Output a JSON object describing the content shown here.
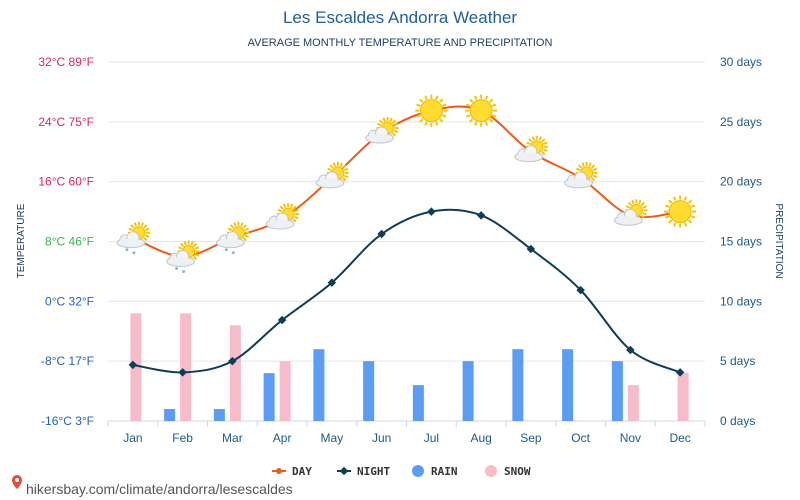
{
  "chart_data": {
    "type": "line",
    "title": "Les Escaldes Andorra Weather",
    "subtitle": "AVERAGE MONTHLY TEMPERATURE AND PRECIPITATION",
    "categories": [
      "Jan",
      "Feb",
      "Mar",
      "Apr",
      "May",
      "Jun",
      "Jul",
      "Aug",
      "Sep",
      "Oct",
      "Nov",
      "Dec"
    ],
    "y_left": {
      "title": "TEMPERATURE",
      "range_c": [
        -16,
        32
      ],
      "ticks": [
        {
          "value": 32,
          "label": "32°C 89°F",
          "color": "#e0245e"
        },
        {
          "value": 24,
          "label": "24°C 75°F",
          "color": "#e0245e"
        },
        {
          "value": 16,
          "label": "16°C 60°F",
          "color": "#e0245e"
        },
        {
          "value": 8,
          "label": "8°C 46°F",
          "color": "#3cb44b"
        },
        {
          "value": 0,
          "label": "0°C 32°F",
          "color": "#1f5fc4"
        },
        {
          "value": -8,
          "label": "-8°C 17°F",
          "color": "#1f5fc4"
        },
        {
          "value": -16,
          "label": "-16°C 3°F",
          "color": "#1f5fc4"
        }
      ]
    },
    "y_right": {
      "title": "PRECIPITATION",
      "range_days": [
        0,
        30
      ],
      "ticks": [
        {
          "value": 30,
          "label": "30 days"
        },
        {
          "value": 25,
          "label": "25 days"
        },
        {
          "value": 20,
          "label": "20 days"
        },
        {
          "value": 15,
          "label": "15 days"
        },
        {
          "value": 10,
          "label": "10 days"
        },
        {
          "value": 5,
          "label": "5 days"
        },
        {
          "value": 0,
          "label": "0 days"
        }
      ]
    },
    "series": [
      {
        "name": "DAY",
        "kind": "line",
        "color": "#f05a1a",
        "values": [
          8.5,
          6,
          8.5,
          11,
          16.5,
          22.5,
          25.5,
          25.5,
          20,
          16.5,
          11.5,
          12
        ],
        "icons": [
          "partly-cloudy-snow",
          "partly-cloudy-snow",
          "partly-cloudy-snow",
          "partly-cloudy",
          "partly-cloudy",
          "partly-cloudy",
          "sun",
          "sun",
          "partly-cloudy",
          "partly-cloudy",
          "partly-cloudy",
          "sun"
        ]
      },
      {
        "name": "NIGHT",
        "kind": "line",
        "color": "#0e3d5a",
        "values": [
          -8.5,
          -9.5,
          -8,
          -2.5,
          2.5,
          9,
          12,
          11.5,
          7,
          1.5,
          -6.5,
          -9.5
        ]
      },
      {
        "name": "RAIN",
        "kind": "bar",
        "color": "#5b9cf4",
        "values": [
          0,
          1,
          1,
          4,
          6,
          5,
          3,
          5,
          6,
          6,
          5,
          0
        ]
      },
      {
        "name": "SNOW",
        "kind": "bar",
        "color": "#f7bcc9",
        "values": [
          9,
          9,
          8,
          5,
          0,
          0,
          0,
          0,
          0,
          0,
          3,
          4
        ]
      }
    ],
    "legend": [
      {
        "name": "DAY",
        "color": "#f05a1a",
        "symbol": "line-dot"
      },
      {
        "name": "NIGHT",
        "color": "#0e3d5a",
        "symbol": "line-diamond"
      },
      {
        "name": "RAIN",
        "color": "#5b9cf4",
        "symbol": "circle"
      },
      {
        "name": "SNOW",
        "color": "#f7bcc9",
        "symbol": "circle"
      }
    ],
    "legend_position": "bottom-center"
  },
  "source": "hikersbay.com/climate/andorra/lesescaldes"
}
